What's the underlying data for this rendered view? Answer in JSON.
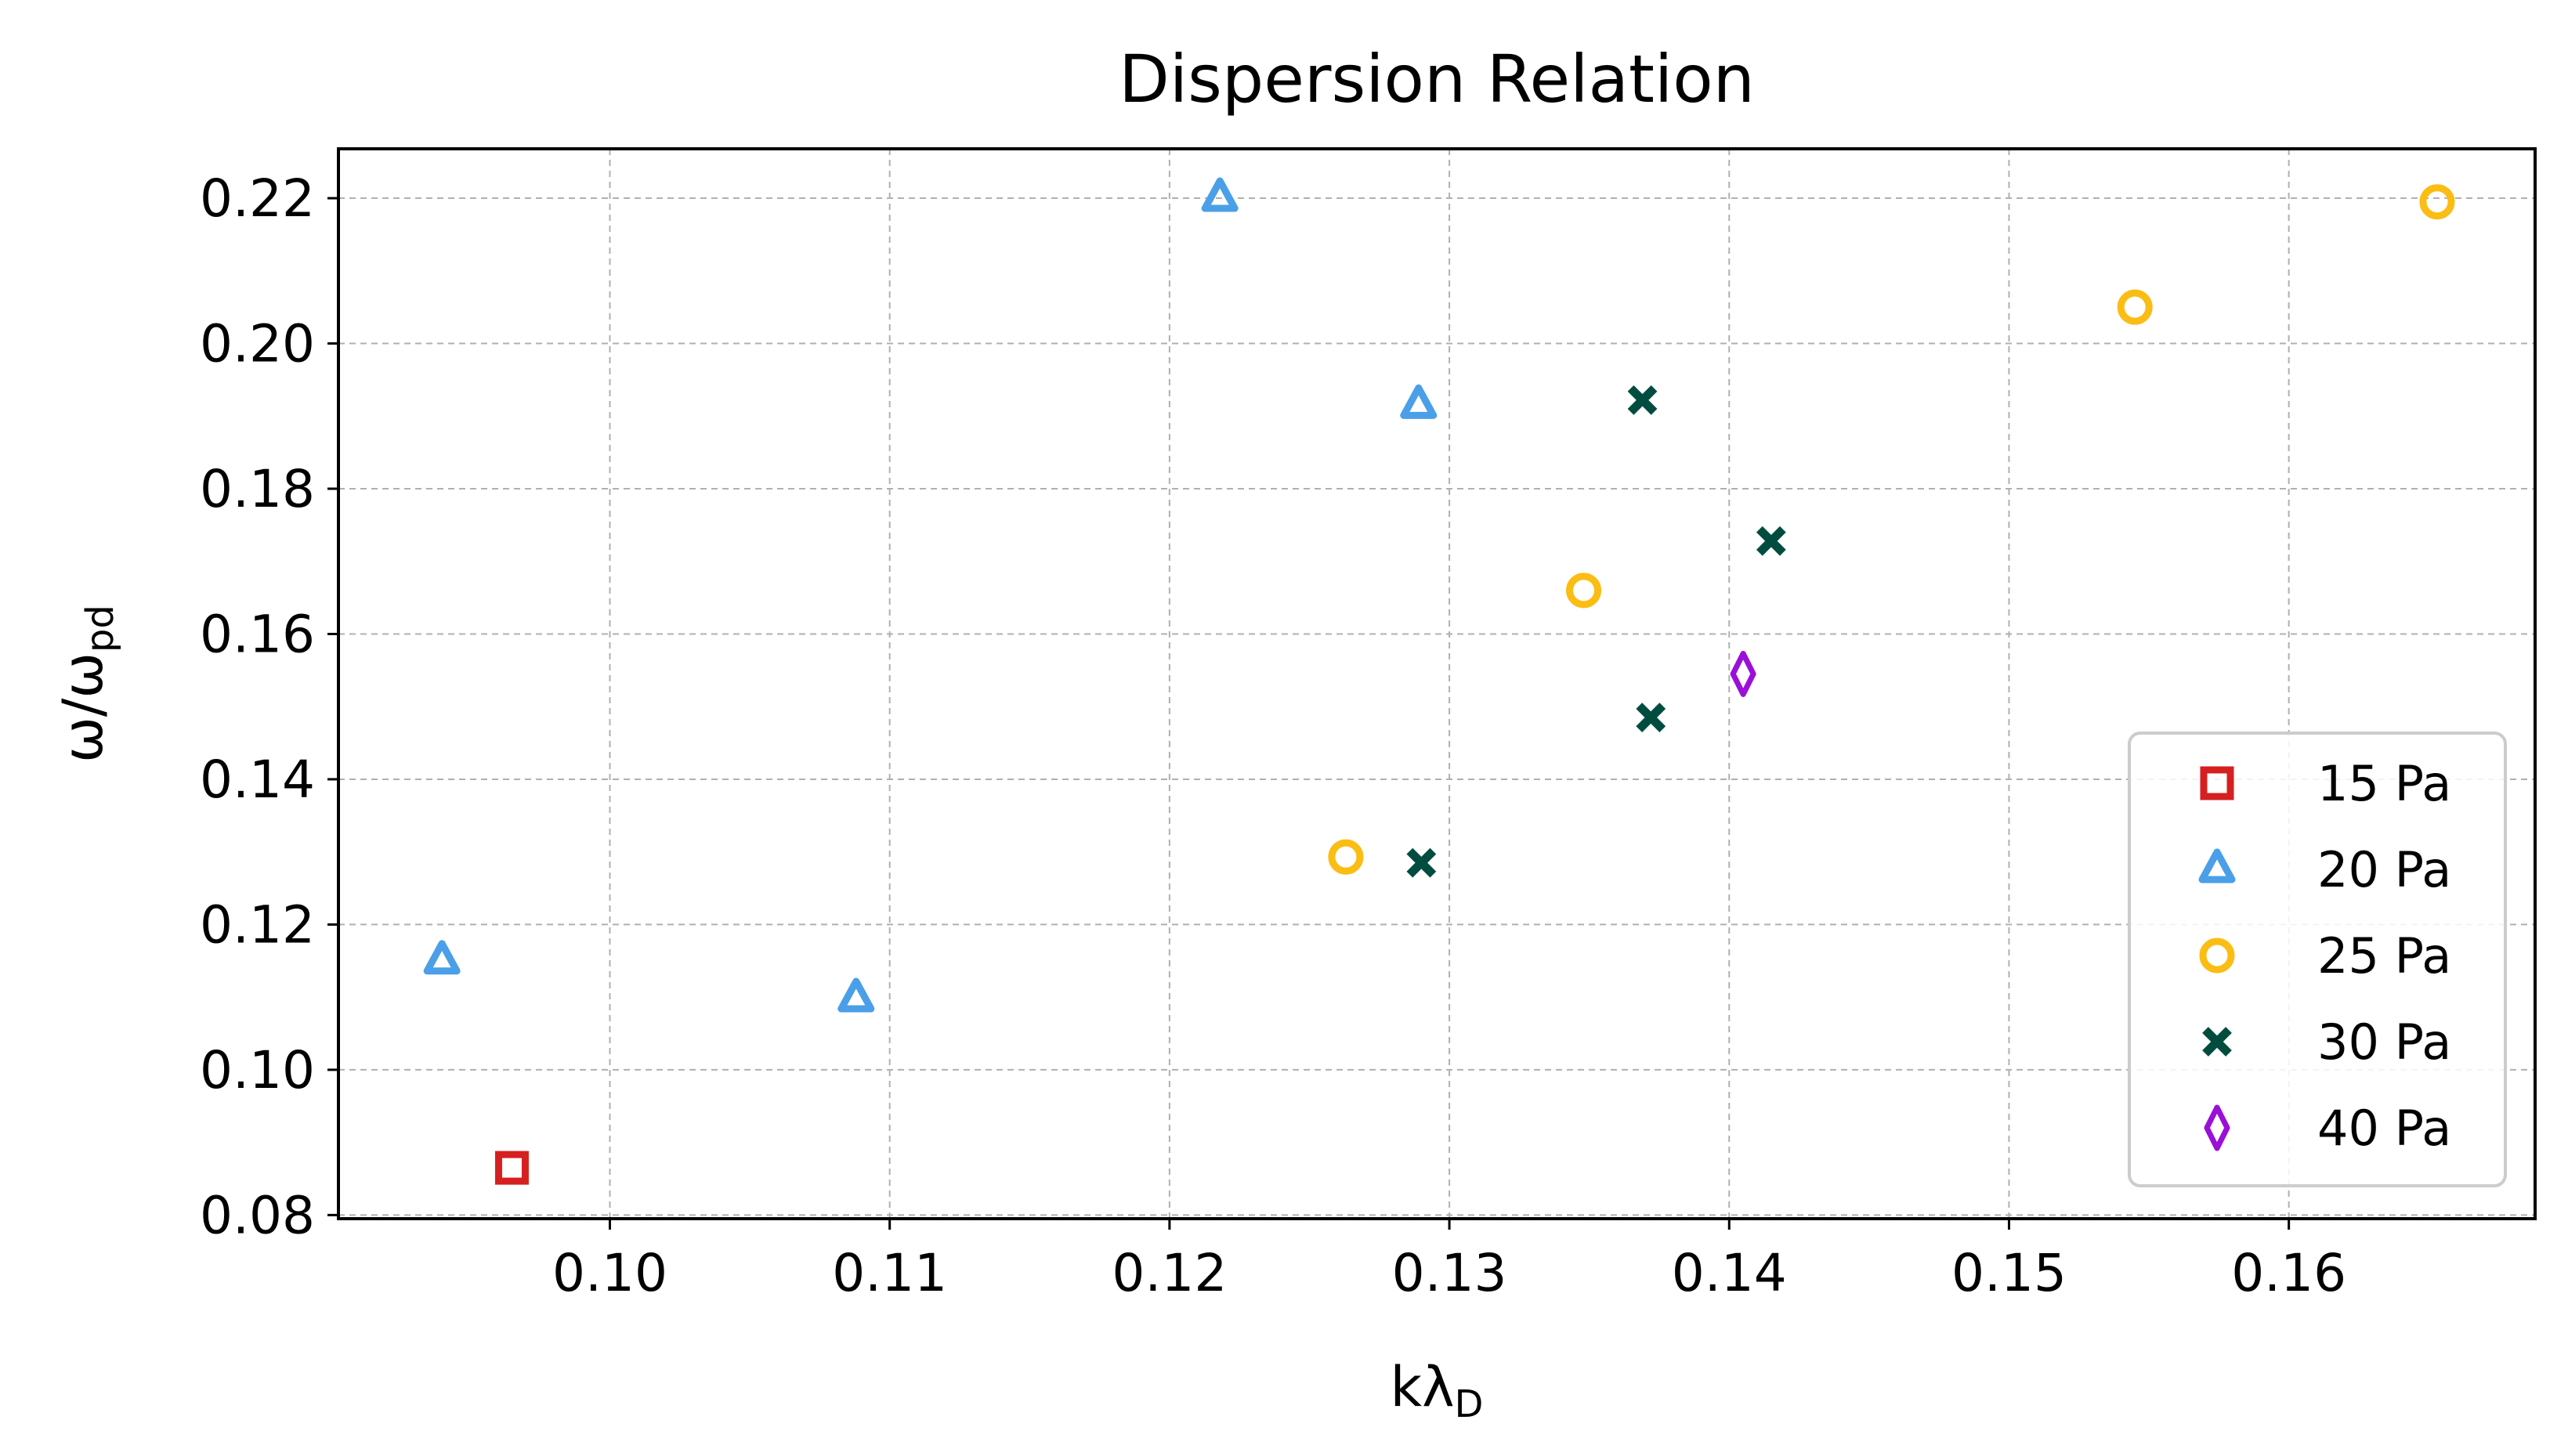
{
  "chart_data": {
    "type": "scatter",
    "title": "Dispersion Relation",
    "xlabel": "kλ",
    "xlabel_sub": "D",
    "ylabel": "ω/ω",
    "ylabel_sub": "pd",
    "xlim": [
      0.0903,
      0.1688
    ],
    "ylim": [
      0.0795,
      0.2268
    ],
    "xticks": [
      0.1,
      0.11,
      0.12,
      0.13,
      0.14,
      0.15,
      0.16
    ],
    "xtick_labels": [
      "0.10",
      "0.11",
      "0.12",
      "0.13",
      "0.14",
      "0.15",
      "0.16"
    ],
    "yticks": [
      0.08,
      0.1,
      0.12,
      0.14,
      0.16,
      0.18,
      0.2,
      0.22
    ],
    "ytick_labels": [
      "0.08",
      "0.10",
      "0.12",
      "0.14",
      "0.16",
      "0.18",
      "0.20",
      "0.22"
    ],
    "grid": true,
    "legend_position": "lower-right",
    "series": [
      {
        "name": "15 Pa",
        "marker": "square",
        "color": "#d62020",
        "points": [
          [
            0.0965,
            0.0865
          ]
        ]
      },
      {
        "name": "20 Pa",
        "marker": "triangle",
        "color": "#4a9fe8",
        "points": [
          [
            0.094,
            0.115
          ],
          [
            0.1088,
            0.1098
          ],
          [
            0.1218,
            0.22
          ],
          [
            0.1289,
            0.1915
          ]
        ]
      },
      {
        "name": "25 Pa",
        "marker": "circle",
        "color": "#fbbd14",
        "points": [
          [
            0.1263,
            0.1293
          ],
          [
            0.1348,
            0.166
          ],
          [
            0.1545,
            0.205
          ],
          [
            0.1653,
            0.2195
          ]
        ]
      },
      {
        "name": "30 Pa",
        "marker": "x",
        "color": "#004d40",
        "points": [
          [
            0.129,
            0.1285
          ],
          [
            0.1369,
            0.1922
          ],
          [
            0.1372,
            0.1485
          ],
          [
            0.1415,
            0.1728
          ]
        ]
      },
      {
        "name": "40 Pa",
        "marker": "diamond",
        "color": "#9a10d8",
        "points": [
          [
            0.1405,
            0.1545
          ]
        ]
      }
    ]
  }
}
